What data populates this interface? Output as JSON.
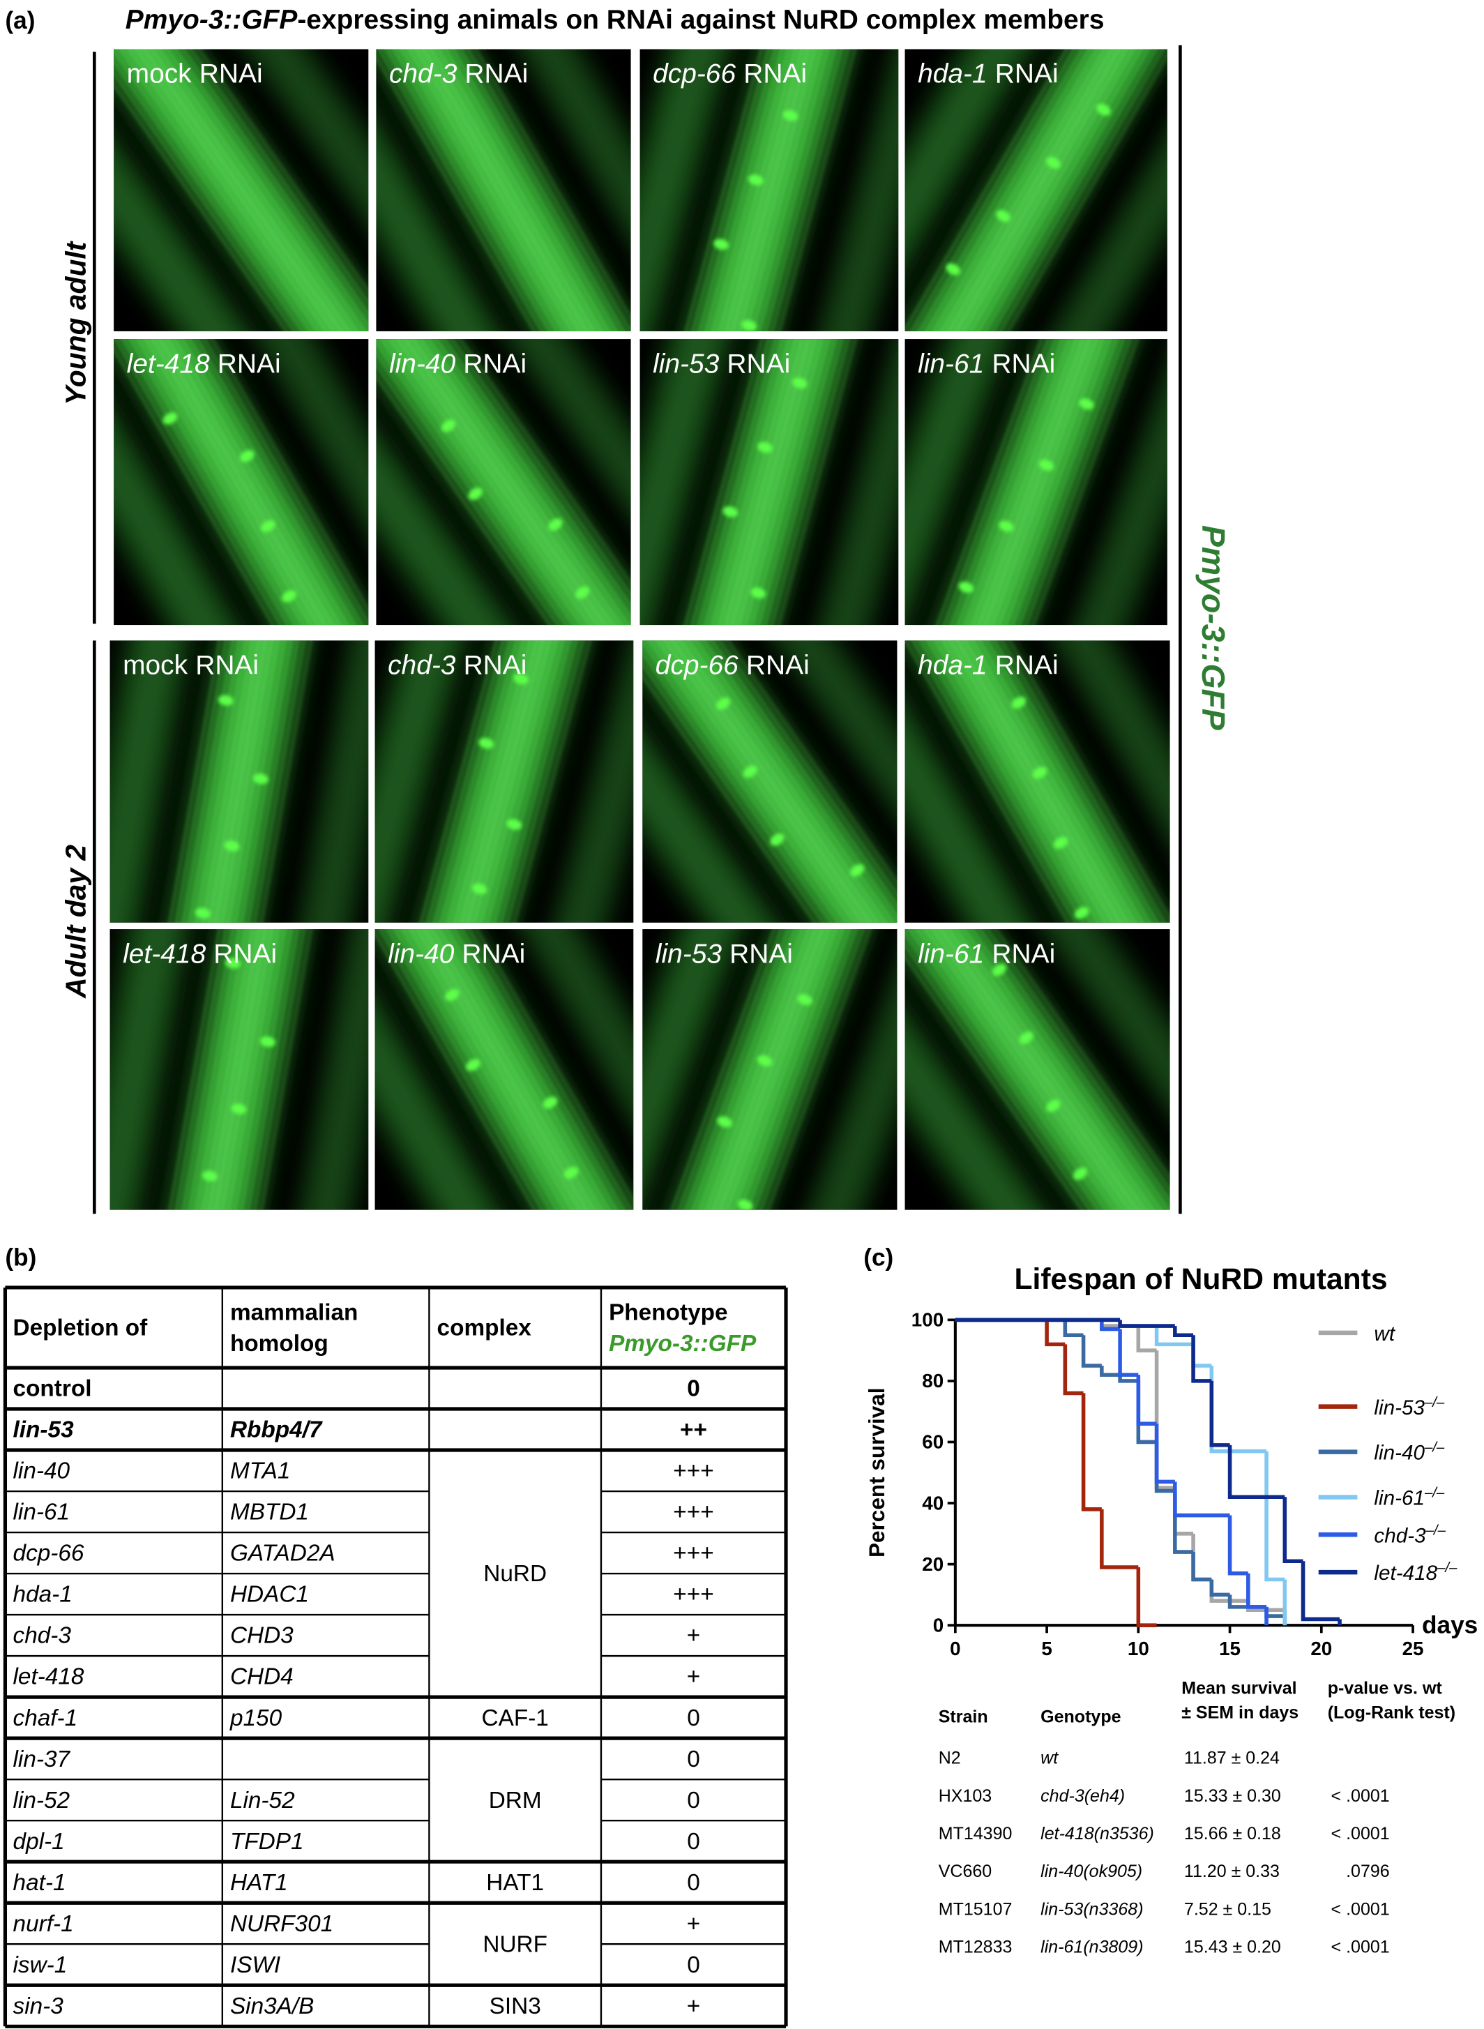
{
  "panel_a": {
    "label": "(a)",
    "title": {
      "italic": "Pmyo-3::GFP",
      "rest": "-expressing animals on RNAi against NuRD complex members"
    },
    "side_label": "Pmyo-3::GFP",
    "rows": [
      {
        "label": "Young adult",
        "images": [
          {
            "gene": "mock",
            "suffix": "RNAi",
            "italic": false
          },
          {
            "gene": "chd-3",
            "suffix": "RNAi",
            "italic": true
          },
          {
            "gene": "dcp-66",
            "suffix": "RNAi",
            "italic": true
          },
          {
            "gene": "hda-1",
            "suffix": "RNAi",
            "italic": true
          },
          {
            "gene": "let-418",
            "suffix": "RNAi",
            "italic": true
          },
          {
            "gene": "lin-40",
            "suffix": "RNAi",
            "italic": true
          },
          {
            "gene": "lin-53",
            "suffix": "RNAi",
            "italic": true
          },
          {
            "gene": "lin-61",
            "suffix": "RNAi",
            "italic": true
          }
        ]
      },
      {
        "label": "Adult day 2",
        "images": [
          {
            "gene": "mock",
            "suffix": "RNAi",
            "italic": false
          },
          {
            "gene": "chd-3",
            "suffix": "RNAi",
            "italic": true
          },
          {
            "gene": "dcp-66",
            "suffix": "RNAi",
            "italic": true
          },
          {
            "gene": "hda-1",
            "suffix": "RNAi",
            "italic": true
          },
          {
            "gene": "let-418",
            "suffix": "RNAi",
            "italic": true
          },
          {
            "gene": "lin-40",
            "suffix": "RNAi",
            "italic": true
          },
          {
            "gene": "lin-53",
            "suffix": "RNAi",
            "italic": true
          },
          {
            "gene": "lin-61",
            "suffix": "RNAi",
            "italic": true
          }
        ]
      }
    ]
  },
  "panel_b": {
    "label": "(b)",
    "header": [
      [
        "Depletion of"
      ],
      [
        "mammalian",
        "homolog"
      ],
      [
        "complex"
      ],
      [
        "Phenotype",
        "Pmyo-3::GFP"
      ]
    ],
    "groups": [
      {
        "complex": null,
        "bold": true,
        "italic": false,
        "rows": [
          [
            "control",
            null,
            "0"
          ]
        ]
      },
      {
        "complex": null,
        "bold": true,
        "italic": true,
        "rows": [
          [
            "lin-53",
            "Rbbp4/7",
            "++"
          ]
        ]
      },
      {
        "complex": "NuRD",
        "bold": false,
        "italic": true,
        "rows": [
          [
            "lin-40",
            "MTA1",
            "+++"
          ],
          [
            "lin-61",
            "MBTD1",
            "+++"
          ],
          [
            "dcp-66",
            "GATAD2A",
            "+++"
          ],
          [
            "hda-1",
            "HDAC1",
            "+++"
          ],
          [
            "chd-3",
            "CHD3",
            "+"
          ],
          [
            "let-418",
            "CHD4",
            "+"
          ]
        ]
      },
      {
        "complex": "CAF-1",
        "bold": false,
        "italic": true,
        "rows": [
          [
            "chaf-1",
            "p150",
            "0"
          ]
        ]
      },
      {
        "complex": "DRM",
        "bold": false,
        "italic": true,
        "rows": [
          [
            "lin-37",
            null,
            "0"
          ],
          [
            "lin-52",
            "Lin-52",
            "0"
          ],
          [
            "dpl-1",
            "TFDP1",
            "0"
          ]
        ]
      },
      {
        "complex": "HAT1",
        "bold": false,
        "italic": true,
        "rows": [
          [
            "hat-1",
            "HAT1",
            "0"
          ]
        ]
      },
      {
        "complex": "NURF",
        "bold": false,
        "italic": true,
        "rows": [
          [
            "nurf-1",
            "NURF301",
            "+"
          ],
          [
            "isw-1",
            "ISWI",
            "0"
          ]
        ]
      },
      {
        "complex": "SIN3",
        "bold": false,
        "italic": true,
        "rows": [
          [
            "sin-3",
            "Sin3A/B",
            "+"
          ]
        ]
      }
    ]
  },
  "chart_data": {
    "type": "step",
    "title": "Lifespan of NuRD mutants",
    "ylabel": "Percent survival",
    "xlabel": "days",
    "xlim": [
      0,
      25
    ],
    "ylim": [
      0,
      100
    ],
    "xticks": [
      0,
      5,
      10,
      15,
      20,
      25
    ],
    "yticks": [
      0,
      20,
      40,
      60,
      80,
      100
    ],
    "series": [
      {
        "name": "wt",
        "sup": null,
        "color": "#a6a6a6",
        "x": [
          0,
          8,
          10,
          11,
          12,
          13,
          14,
          16,
          18
        ],
        "values": [
          100,
          98,
          90,
          45,
          30,
          15,
          8,
          5,
          0
        ]
      },
      {
        "name": "lin-53",
        "sup": "–/–",
        "color": "#a3260c",
        "x": [
          0,
          5,
          6,
          7,
          8,
          10,
          11
        ],
        "values": [
          100,
          92,
          76,
          38,
          19,
          0,
          0
        ]
      },
      {
        "name": "lin-40",
        "sup": "–/–",
        "color": "#3b6aa3",
        "x": [
          0,
          6,
          7,
          8,
          9,
          10,
          11,
          12,
          13,
          14,
          15,
          17,
          18
        ],
        "values": [
          100,
          95,
          85,
          82,
          80,
          60,
          44,
          24,
          15,
          10,
          6,
          3,
          0
        ]
      },
      {
        "name": "lin-61",
        "sup": "–/–",
        "color": "#80c8f2",
        "x": [
          0,
          9,
          11,
          13,
          14,
          17,
          18
        ],
        "values": [
          100,
          98,
          92,
          85,
          57,
          15,
          0
        ]
      },
      {
        "name": "chd-3",
        "sup": "–/–",
        "color": "#2d5be6",
        "x": [
          0,
          8,
          9,
          10,
          11,
          12,
          15,
          16,
          17
        ],
        "values": [
          100,
          97,
          82,
          66,
          47,
          36,
          17,
          6,
          0
        ]
      },
      {
        "name": "let-418",
        "sup": "–/–",
        "color": "#0d2a8c",
        "x": [
          0,
          9,
          12,
          13,
          14,
          15,
          18,
          19,
          21
        ],
        "values": [
          100,
          98,
          95,
          80,
          59,
          42,
          21,
          2,
          0
        ]
      }
    ]
  },
  "panel_c": {
    "label": "(c)",
    "stats": {
      "header": [
        [
          "Strain"
        ],
        [
          "Genotype"
        ],
        [
          "Mean survival",
          "± SEM in days"
        ],
        [
          "p-value vs. wt",
          "(Log-Rank test)"
        ]
      ],
      "rows": [
        [
          "N2",
          "wt",
          "11.87 ± 0.24",
          null
        ],
        [
          "HX103",
          "chd-3(eh4)",
          "15.33 ± 0.30",
          "< .0001"
        ],
        [
          "MT14390",
          "let-418(n3536)",
          "15.66 ± 0.18",
          "< .0001"
        ],
        [
          "VC660",
          "lin-40(ok905)",
          "11.20 ± 0.33",
          ".0796"
        ],
        [
          "MT15107",
          "lin-53(n3368)",
          "7.52 ± 0.15",
          "< .0001"
        ],
        [
          "MT12833",
          "lin-61(n3809)",
          "15.43 ± 0.20",
          "< .0001"
        ]
      ]
    }
  }
}
